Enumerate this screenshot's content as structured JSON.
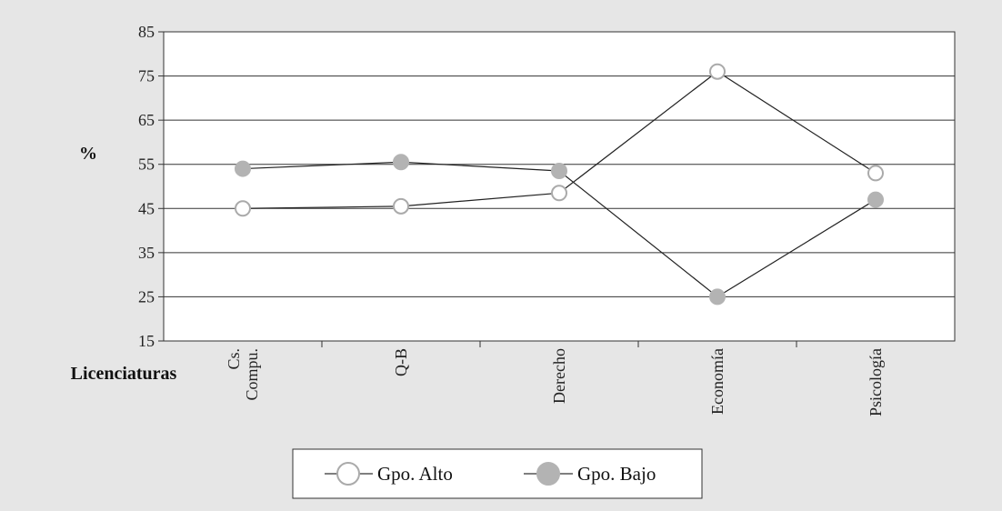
{
  "chart_data": {
    "type": "line",
    "title": "",
    "ylabel": "%",
    "xlabel": "Licenciaturas",
    "ylim": [
      15,
      85
    ],
    "yticks": [
      15,
      25,
      35,
      45,
      55,
      65,
      75,
      85
    ],
    "categories": [
      "Cs. Compu.",
      "Q-B",
      "Derecho",
      "Economía",
      "Psicología"
    ],
    "category_lines": [
      [
        "Cs.",
        "Compu."
      ],
      [
        "Q-B"
      ],
      [
        "Derecho"
      ],
      [
        "Economía"
      ],
      [
        "Psicología"
      ]
    ],
    "grid": true,
    "legend_position": "bottom-center",
    "series": [
      {
        "name": "Gpo. Alto",
        "marker": "hollow-circle",
        "color": "#ffffff",
        "edge": "#aaaaaa",
        "values": [
          45,
          45.5,
          48.5,
          76,
          53
        ]
      },
      {
        "name": "Gpo. Bajo",
        "marker": "filled-circle",
        "color": "#b3b3b3",
        "edge": "#b3b3b3",
        "values": [
          54,
          55.5,
          53.5,
          25,
          47
        ]
      }
    ]
  }
}
